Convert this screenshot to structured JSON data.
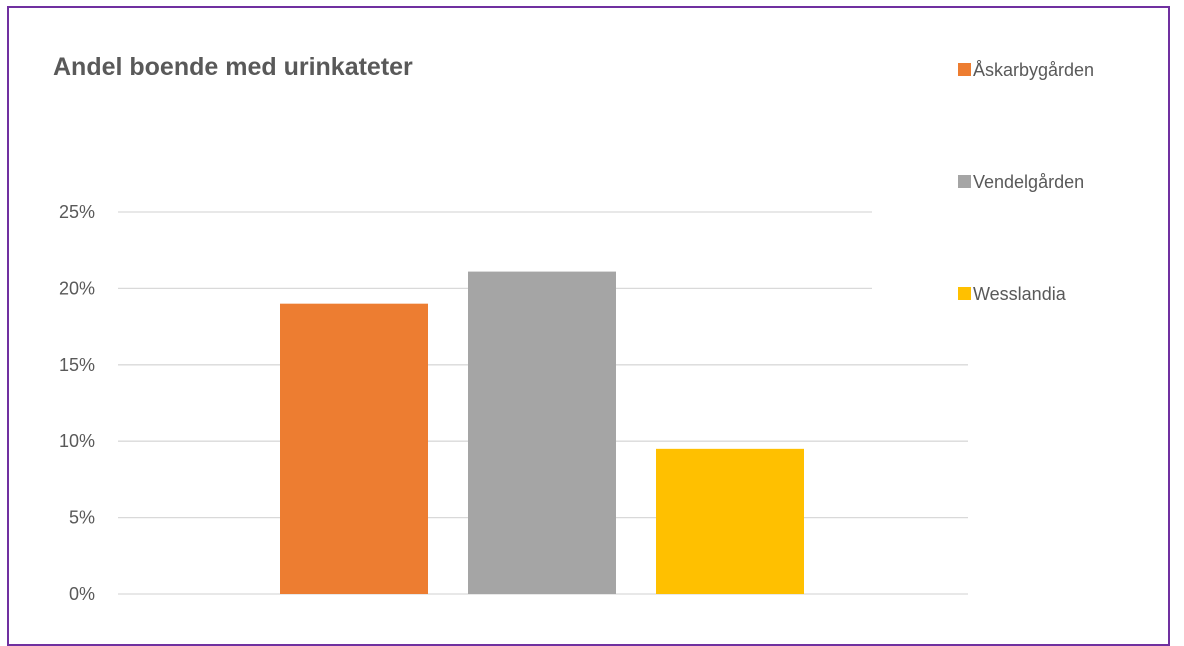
{
  "chart_data": {
    "type": "bar",
    "title": "Andel boende med urinkateter",
    "xlabel": "",
    "ylabel": "",
    "ylim": [
      0,
      0.25
    ],
    "yticks": [
      {
        "value": 0,
        "label": "0%"
      },
      {
        "value": 0.05,
        "label": "5%"
      },
      {
        "value": 0.1,
        "label": "10%"
      },
      {
        "value": 0.15,
        "label": "15%"
      },
      {
        "value": 0.2,
        "label": "20%"
      },
      {
        "value": 0.25,
        "label": "25%"
      }
    ],
    "grid": true,
    "legend_position": "right",
    "series": [
      {
        "name": "Åskarbygården",
        "value": 0.19,
        "color": "#ed7d31"
      },
      {
        "name": "Vendelgården",
        "value": 0.211,
        "color": "#a5a5a5"
      },
      {
        "name": "Wesslandia",
        "value": 0.095,
        "color": "#ffc000"
      }
    ]
  }
}
